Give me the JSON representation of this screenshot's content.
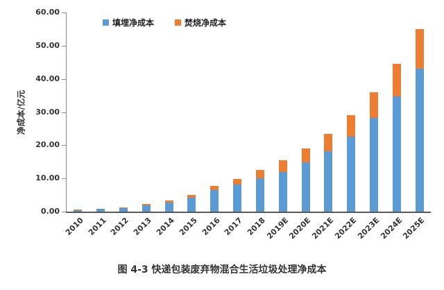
{
  "chart_data": {
    "type": "bar",
    "stacked": true,
    "title": "图 4-3 快递包装废弃物混合生活垃圾处理净成本",
    "ylabel": "净成本/亿元",
    "xlabel": "",
    "ylim": [
      0,
      60
    ],
    "yticks": [
      0,
      10,
      20,
      30,
      40,
      50,
      60
    ],
    "ytick_decimals": 2,
    "grid": false,
    "legend_position": "top",
    "categories": [
      "2010",
      "2011",
      "2012",
      "2013",
      "2014",
      "2015",
      "2016",
      "2017",
      "2018",
      "2019E",
      "2020E",
      "2021E",
      "2022E",
      "2023E",
      "2024E",
      "2025E"
    ],
    "series": [
      {
        "name": "填埋净成本",
        "key": "landfill",
        "color": "#5B9BD5",
        "values": [
          0.5,
          0.75,
          1.1,
          1.9,
          2.8,
          4.2,
          6.4,
          8.1,
          10.0,
          12.0,
          14.8,
          18.2,
          22.6,
          28.2,
          34.8,
          43.0
        ]
      },
      {
        "name": "焚烧净成本",
        "key": "incineration",
        "color": "#ED7D31",
        "values": [
          0.1,
          0.15,
          0.25,
          0.45,
          0.65,
          0.85,
          1.4,
          1.8,
          2.6,
          3.4,
          4.3,
          5.3,
          6.4,
          7.8,
          9.7,
          12.0
        ]
      }
    ]
  }
}
